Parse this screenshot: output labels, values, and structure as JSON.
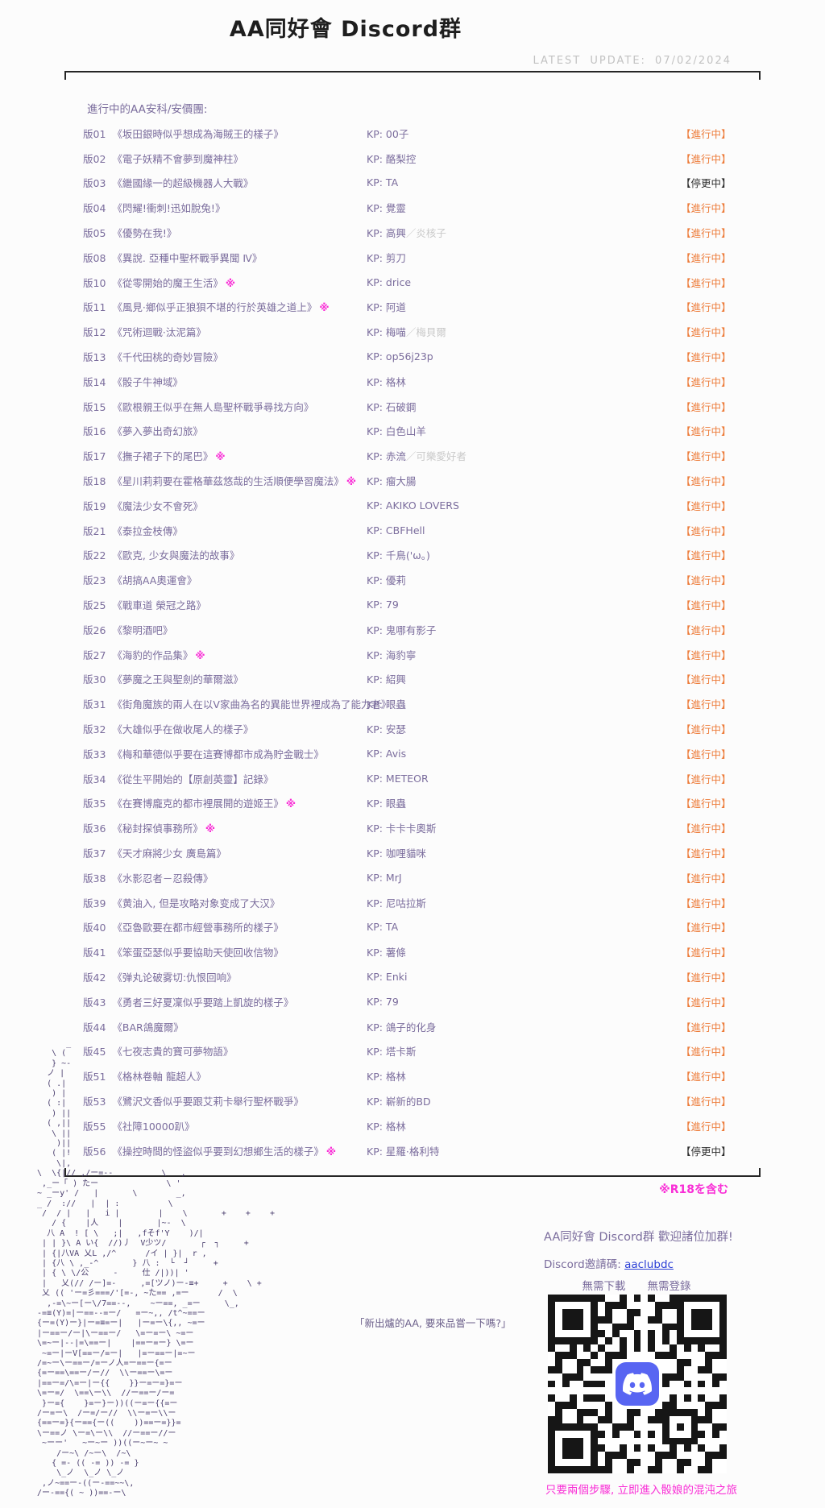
{
  "page": {
    "title": "AA同好會 Discord群",
    "latest_update": "LATEST UPDATE: 07/02/2024",
    "list_header": "進行中的AA安科/安價團:",
    "kp_label": "KP: ",
    "r18_note": "※R18を含む"
  },
  "colors": {
    "row_purple": "#7b6d9d",
    "status_active": "#ed7c3a",
    "status_paused": "#2e2e2e",
    "magenta": "#f92ed6",
    "link_blue": "#2b3fd6",
    "discord_blurple": "#5865F2"
  },
  "list": {
    "rows": [
      {
        "no": "版01",
        "title": "《坂田銀時似乎想成為海賊王的樣子》",
        "r18": false,
        "kp": "00子",
        "kp_extra": "",
        "status": "【進行中】"
      },
      {
        "no": "版02",
        "title": "《電子妖精不會夢到魔神柱》",
        "r18": false,
        "kp": "酪梨控",
        "kp_extra": "",
        "status": "【進行中】"
      },
      {
        "no": "版03",
        "title": "《繼國緣一的超級機器人大戰》",
        "r18": false,
        "kp": "TA",
        "kp_extra": "",
        "status": "【停更中】"
      },
      {
        "no": "版04",
        "title": "《閃耀!衝刺!迅如脫兔!》",
        "r18": false,
        "kp": "覺靈",
        "kp_extra": "",
        "status": "【進行中】"
      },
      {
        "no": "版05",
        "title": "《優勢在我!》",
        "r18": false,
        "kp": "高興",
        "kp_extra": "／炎核子",
        "status": "【進行中】"
      },
      {
        "no": "版08",
        "title": "《異說. 亞種中聖杯戰爭異聞 Ⅳ》",
        "r18": false,
        "kp": "剪刀",
        "kp_extra": "",
        "status": "【進行中】"
      },
      {
        "no": "版10",
        "title": "《從零開始的魔王生活》",
        "r18": true,
        "kp": "drice",
        "kp_extra": "",
        "status": "【進行中】"
      },
      {
        "no": "版11",
        "title": "《風見·鄉似乎正狼狽不堪的行於英雄之道上》",
        "r18": true,
        "kp": "阿道",
        "kp_extra": "",
        "status": "【進行中】"
      },
      {
        "no": "版12",
        "title": "《咒術迴戰·汰泥篇》",
        "r18": false,
        "kp": "梅喵",
        "kp_extra": "／梅貝爾",
        "status": "【進行中】"
      },
      {
        "no": "版13",
        "title": "《千代田桃的奇妙冒險》",
        "r18": false,
        "kp": "op56j23p",
        "kp_extra": "",
        "status": "【進行中】"
      },
      {
        "no": "版14",
        "title": "《骰子牛神域》",
        "r18": false,
        "kp": "格林",
        "kp_extra": "",
        "status": "【進行中】"
      },
      {
        "no": "版15",
        "title": "《歐根親王似乎在無人島聖杯戰爭尋找方向》",
        "r18": false,
        "kp": "石破鋼",
        "kp_extra": "",
        "status": "【進行中】"
      },
      {
        "no": "版16",
        "title": "《夢入夢出奇幻旅》",
        "r18": false,
        "kp": "白色山羊",
        "kp_extra": "",
        "status": "【進行中】"
      },
      {
        "no": "版17",
        "title": "《撫子裙子下的尾巴》",
        "r18": true,
        "kp": "赤流",
        "kp_extra": "／可樂愛好者",
        "status": "【進行中】"
      },
      {
        "no": "版18",
        "title": "《星川莉莉要在霍格華茲悠哉的生活順便學習魔法》",
        "r18": true,
        "kp": "瘤大腸",
        "kp_extra": "",
        "status": "【進行中】"
      },
      {
        "no": "版19",
        "title": "《魔法少女不會死》",
        "r18": false,
        "kp": "AKIKO LOVERS",
        "kp_extra": "",
        "status": "【進行中】"
      },
      {
        "no": "版21",
        "title": "《泰拉金枝傳》",
        "r18": false,
        "kp": "CBFHell",
        "kp_extra": "",
        "status": "【進行中】"
      },
      {
        "no": "版22",
        "title": "《歐克, 少女與魔法的故事》",
        "r18": false,
        "kp": "千鳥('ω。)",
        "kp_extra": "",
        "status": "【進行中】"
      },
      {
        "no": "版23",
        "title": "《胡搞AA奧運會》",
        "r18": false,
        "kp": "優莉",
        "kp_extra": "",
        "status": "【進行中】"
      },
      {
        "no": "版25",
        "title": "《戰車道 榮冠之路》",
        "r18": false,
        "kp": "79",
        "kp_extra": "",
        "status": "【進行中】"
      },
      {
        "no": "版26",
        "title": "《黎明酒吧》",
        "r18": false,
        "kp": "鬼哪有影子",
        "kp_extra": "",
        "status": "【進行中】"
      },
      {
        "no": "版27",
        "title": "《海豹的作品集》",
        "r18": true,
        "kp": "海豹寧",
        "kp_extra": "",
        "status": "【進行中】"
      },
      {
        "no": "版30",
        "title": "《夢魔之王與聖劍的華爾滋》",
        "r18": false,
        "kp": "紹興",
        "kp_extra": "",
        "status": "【進行中】"
      },
      {
        "no": "版31",
        "title": "《街角魔族的兩人在以V家曲為名的異能世界裡成為了能力者》",
        "r18": false,
        "kp": "眼蟲",
        "kp_extra": "",
        "status": "【進行中】"
      },
      {
        "no": "版32",
        "title": "《大雄似乎在做收尾人的樣子》",
        "r18": false,
        "kp": "安瑟",
        "kp_extra": "",
        "status": "【進行中】"
      },
      {
        "no": "版33",
        "title": "《梅和華德似乎要在這賽博都市成為貯金戰士》",
        "r18": false,
        "kp": "Avis",
        "kp_extra": "",
        "status": "【進行中】"
      },
      {
        "no": "版34",
        "title": "《從生平開始的【原創英靈】記錄》",
        "r18": false,
        "kp": "METEOR",
        "kp_extra": "",
        "status": "【進行中】"
      },
      {
        "no": "版35",
        "title": "《在賽博龐克的都市裡展開的遊姬王》",
        "r18": true,
        "kp": "眼蟲",
        "kp_extra": "",
        "status": "【進行中】"
      },
      {
        "no": "版36",
        "title": "《秘封探偵事務所》",
        "r18": true,
        "kp": "卡卡卡奧斯",
        "kp_extra": "",
        "status": "【進行中】"
      },
      {
        "no": "版37",
        "title": "《天才麻將少女 廣島篇》",
        "r18": false,
        "kp": "咖哩貓咪",
        "kp_extra": "",
        "status": "【進行中】"
      },
      {
        "no": "版38",
        "title": "《水影忍者－忍殺傳》",
        "r18": false,
        "kp": "MrJ",
        "kp_extra": "",
        "status": "【進行中】"
      },
      {
        "no": "版39",
        "title": "《黄油入, 但是攻略对象变成了大汉》",
        "r18": false,
        "kp": "尼咕拉斯",
        "kp_extra": "",
        "status": "【進行中】"
      },
      {
        "no": "版40",
        "title": "《亞魯歐要在都市經營事務所的樣子》",
        "r18": false,
        "kp": "TA",
        "kp_extra": "",
        "status": "【進行中】"
      },
      {
        "no": "版41",
        "title": "《笨蛋亞瑟似乎要協助天使回收信物》",
        "r18": false,
        "kp": "薯條",
        "kp_extra": "",
        "status": "【進行中】"
      },
      {
        "no": "版42",
        "title": "《弹丸论破雾切:仇恨回响》",
        "r18": false,
        "kp": "Enki",
        "kp_extra": "",
        "status": "【進行中】"
      },
      {
        "no": "版43",
        "title": "《勇者三好夏凜似乎要踏上凱旋的樣子》",
        "r18": false,
        "kp": "79",
        "kp_extra": "",
        "status": "【進行中】"
      },
      {
        "no": "版44",
        "title": "《BAR鴿魔爾》",
        "r18": false,
        "kp": "鴿子的化身",
        "kp_extra": "",
        "status": "【進行中】"
      },
      {
        "no": "版45",
        "title": "《七夜志貴的寶可夢物語》",
        "r18": false,
        "kp": "塔卡斯",
        "kp_extra": "",
        "status": "【進行中】"
      },
      {
        "no": "版51",
        "title": "《格林卷軸 龍超人》",
        "r18": false,
        "kp": "格林",
        "kp_extra": "",
        "status": "【進行中】"
      },
      {
        "no": "版53",
        "title": "《鷺沢文香似乎要跟艾莉卡舉行聖杯戰爭》",
        "r18": false,
        "kp": "嶄新的BD",
        "kp_extra": "",
        "status": "【進行中】"
      },
      {
        "no": "版55",
        "title": "《社障10000趴》",
        "r18": false,
        "kp": "格林",
        "kp_extra": "",
        "status": "【進行中】"
      },
      {
        "no": "版56",
        "title": "《操控時間的怪盜似乎要到幻想鄉生活的樣子》",
        "r18": true,
        "kp": "星羅·格利特",
        "kp_extra": "",
        "status": "【停更中】"
      }
    ]
  },
  "footer": {
    "quote": "「新出爐的AA, 要來品嘗一下嗎?」",
    "join_title": "AA同好會 Discord群  歡迎諸位加群!",
    "invite_label": "Discord邀請碼: ",
    "invite_code": "aaclubdc",
    "no_need": "無需下載　　無需登錄",
    "bottom_note": "只要兩個步驟, 立即進入骰娘的混沌之旅",
    "ascii_art_lines": [
      "        _",
      "     \\ (",
      "     } ~-",
      "    ノ |",
      "    ( .|",
      "     ) |",
      "    ( :|",
      "     ) ||",
      "    ( ,||",
      "     \\ ||",
      "      )||",
      "     ( |!",
      "      \\|,",
      "  \\  \\{|// ,/ー=--          \\   ,",
      "   ,_ー「 ) たー              \\ '",
      "  ~ _ーy' /   |       \\        _,",
      "  _ /  ://   |  | :          \\",
      "   /  / |   |   i |        |    \\       +    +    +",
      "     / {    |人    |       |~-  \\",
      "    八 A  ! [ \\   ;|   ,fそf'Y    )/|",
      "   | | }\\ A い{  //)丿  V少ツ/       ┌  ┐     +",
      "   | {|八VA 乂L ,/^      /イ | }|  r ,",
      "   | {八 \\ ,_-^       } 八 :  └  ┘     +",
      "   | { \\ \\/公     -     仕 /|))| '",
      "   |   乂(// /ー]=-     ,=[ツノ)ー-≡+     +    \\ +",
      "   乂 (( 'ー=彡===/'[=-, ~た== ,=ー      /  \\",
      "    ,-=\\~ー[ー\\/7==--,    ~ー==, _=ー     \\_,",
      "  -=≡(Y)=|ー==--=ー/   =ー~,, /t^~==ー",
      "  {ー=(Y)ー}|ー=≡=ー|   |ー=ー\\{,, ~=ー",
      "  |ー==ー/ー|\\ー==ー/   \\=ー=ー\\ ~=ー",
      "  \\=~ー|--|=\\==ー|    |==ー=ー} \\=ー",
      "   ~=ー|ーV[==ー/=ー|   |=ー==ー|=~ー",
      "  /=~ー\\ー==ー/=ーノ人=ー==ー{=ー",
      "  {=ー==\\==ー/ー//  \\\\ー==ー\\=ー",
      "  |==ー=/\\=ー|ー{{    }}ー=ー=}=ー",
      "  \\=ー=/  \\==\\ー\\\\  //ー==ー/ー=",
      "   }ー={    }=ー}ー))((ー=ー{{=ー",
      "  /ー=ー\\  /ー=/ー//  \\\\ー=ー\\\\ー",
      "  {==ー=}{ー=={ー((    ))==ー=}}=",
      "  \\ー==ノ \\ー=\\ー\\\\  //ー==ー//ー",
      "   ~ーー'   ~ー~ー ))((ー~ー~ ~",
      "      /ー~\\ /~ー\\  /~\\",
      "     { =- (( -= )) -= }",
      "      \\_ノ  \\_ノ \\_ノ",
      "   ,ノ~==ー-((ー-==~~\\,",
      "  /ー-=={( ~ ))==-ー\\"
    ]
  }
}
